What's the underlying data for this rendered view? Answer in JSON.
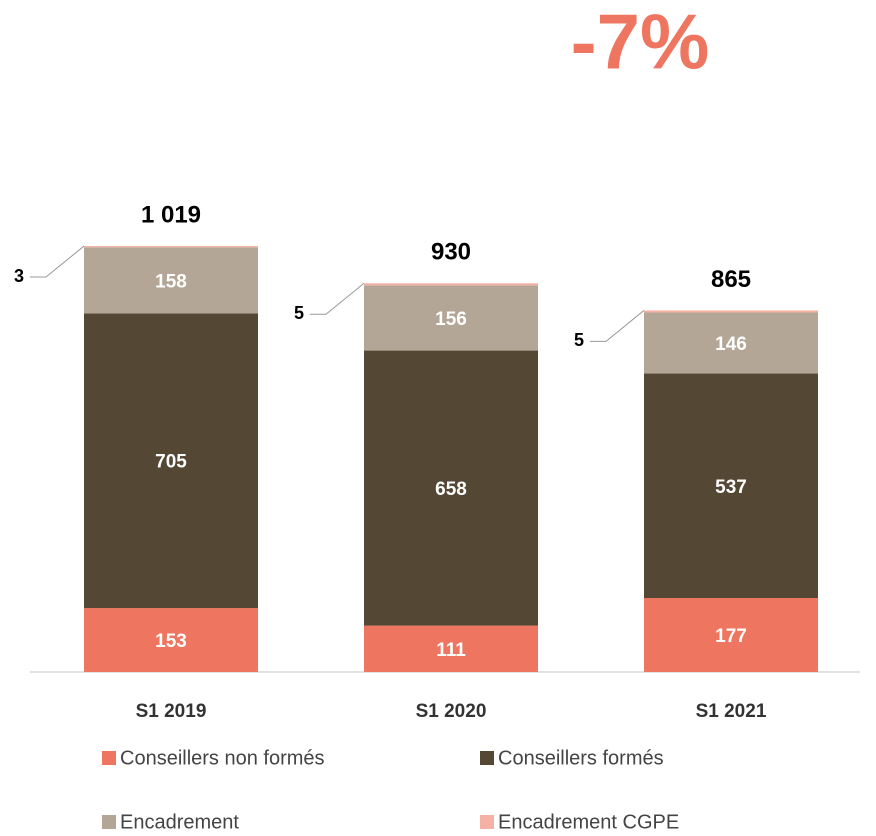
{
  "chart_data": {
    "type": "stacked_bar",
    "annotation": "-7%",
    "categories": [
      "S1 2019",
      "S1 2020",
      "S1 2021"
    ],
    "series": [
      {
        "name": "Conseillers non formés",
        "color": "#ee7560",
        "values": [
          153,
          111,
          177
        ]
      },
      {
        "name": "Conseillers formés",
        "color": "#544733",
        "values": [
          705,
          658,
          537
        ]
      },
      {
        "name": "Encadrement",
        "color": "#b3a696",
        "values": [
          158,
          156,
          146
        ]
      },
      {
        "name": "Encadrement CGPE",
        "color": "#f4b1a4",
        "values": [
          3,
          5,
          5
        ]
      }
    ],
    "totals": [
      {
        "value": 1019,
        "label": "1 019"
      },
      930,
      865
    ]
  }
}
